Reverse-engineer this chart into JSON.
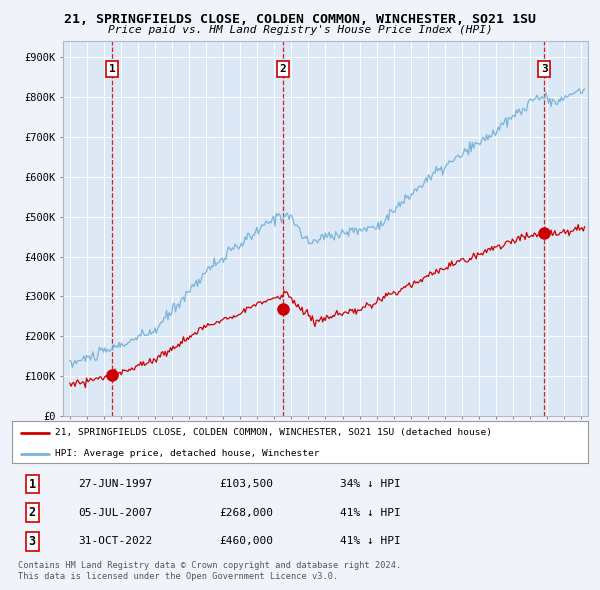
{
  "title": "21, SPRINGFIELDS CLOSE, COLDEN COMMON, WINCHESTER, SO21 1SU",
  "subtitle": "Price paid vs. HM Land Registry's House Price Index (HPI)",
  "ylim": [
    0,
    940000
  ],
  "yticks": [
    0,
    100000,
    200000,
    300000,
    400000,
    500000,
    600000,
    700000,
    800000,
    900000
  ],
  "ytick_labels": [
    "£0",
    "£100K",
    "£200K",
    "£300K",
    "£400K",
    "£500K",
    "£600K",
    "£700K",
    "£800K",
    "£900K"
  ],
  "hpi_color": "#7ab4d8",
  "price_color": "#cc0000",
  "dashed_color": "#cc0000",
  "bg_color": "#f0f4fa",
  "panel_bg": "#dce8f5",
  "grid_color": "#ffffff",
  "sale_year_nums": [
    1997.48,
    2007.5,
    2022.83
  ],
  "sale_prices": [
    103500,
    268000,
    460000
  ],
  "sale_labels": [
    "1",
    "2",
    "3"
  ],
  "legend_line1": "21, SPRINGFIELDS CLOSE, COLDEN COMMON, WINCHESTER, SO21 1SU (detached house)",
  "legend_line2": "HPI: Average price, detached house, Winchester",
  "table_rows": [
    [
      "1",
      "27-JUN-1997",
      "£103,500",
      "34% ↓ HPI"
    ],
    [
      "2",
      "05-JUL-2007",
      "£268,000",
      "41% ↓ HPI"
    ],
    [
      "3",
      "31-OCT-2022",
      "£460,000",
      "41% ↓ HPI"
    ]
  ],
  "footnote1": "Contains HM Land Registry data © Crown copyright and database right 2024.",
  "footnote2": "This data is licensed under the Open Government Licence v3.0."
}
